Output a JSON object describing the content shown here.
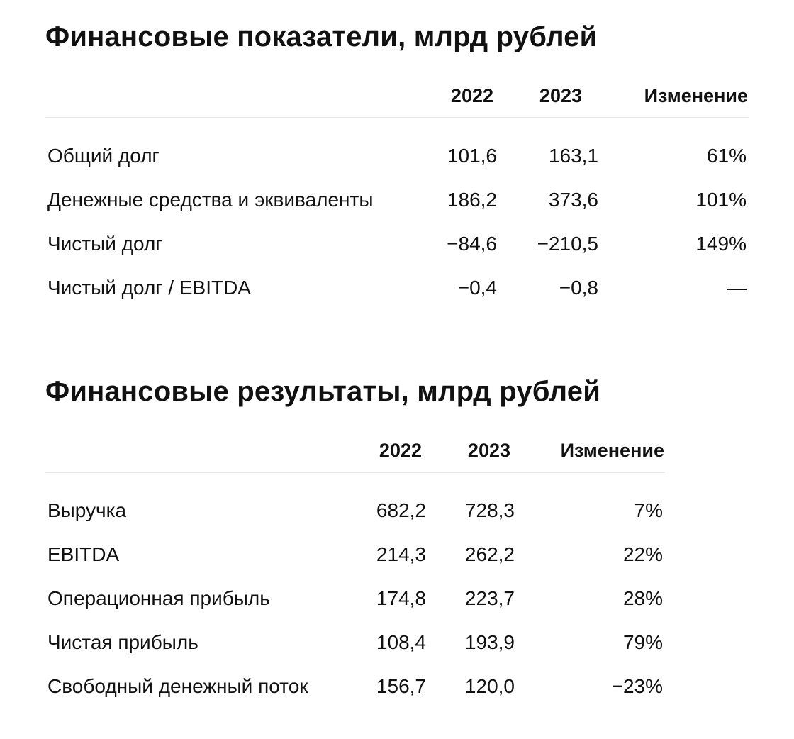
{
  "tables": [
    {
      "title": "Финансовые показатели, млрд рублей",
      "columns": [
        "2022",
        "2023",
        "Изменение"
      ],
      "rows": [
        {
          "label": "Общий долг",
          "values": [
            "101,6",
            "163,1",
            "61%"
          ]
        },
        {
          "label": "Денежные средства и эквиваленты",
          "values": [
            "186,2",
            "373,6",
            "101%"
          ]
        },
        {
          "label": "Чистый долг",
          "values": [
            "−84,6",
            "−210,5",
            "149%"
          ]
        },
        {
          "label": "Чистый долг / EBITDA",
          "values": [
            "−0,4",
            "−0,8",
            "—"
          ]
        }
      ]
    },
    {
      "title": "Финансовые результаты, млрд рублей",
      "columns": [
        "2022",
        "2023",
        "Изменение"
      ],
      "rows": [
        {
          "label": "Выручка",
          "values": [
            "682,2",
            "728,3",
            "7%"
          ]
        },
        {
          "label": "EBITDA",
          "values": [
            "214,3",
            "262,2",
            "22%"
          ]
        },
        {
          "label": "Операционная прибыль",
          "values": [
            "174,8",
            "223,7",
            "28%"
          ]
        },
        {
          "label": "Чистая прибыль",
          "values": [
            "108,4",
            "193,9",
            "79%"
          ]
        },
        {
          "label": "Свободный денежный поток",
          "values": [
            "156,7",
            "120,0",
            "−23%"
          ]
        }
      ]
    }
  ]
}
